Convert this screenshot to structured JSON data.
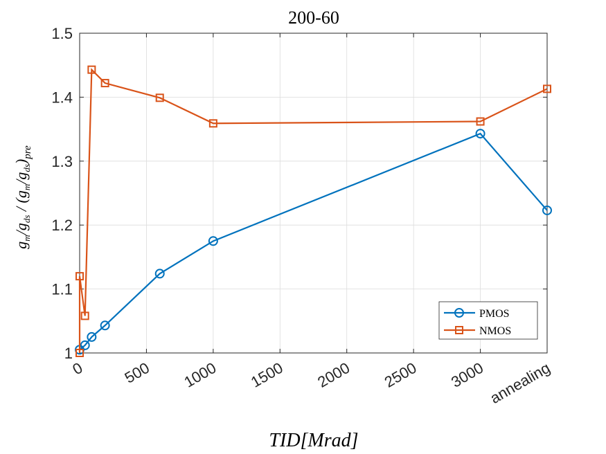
{
  "chart_data": {
    "type": "line",
    "title": "200-60",
    "xlabel": "TID[Mrad]",
    "ylabel": "g_m/g_ds / (g_m/g_ds)_pre",
    "xlim": [
      0,
      3500
    ],
    "ylim": [
      1.0,
      1.5
    ],
    "x_ticks": [
      0,
      500,
      1000,
      1500,
      2000,
      2500,
      3000,
      3500
    ],
    "x_tick_labels": [
      "0",
      "500",
      "1000",
      "1500",
      "2000",
      "2500",
      "3000",
      "annealing"
    ],
    "y_ticks": [
      1.0,
      1.1,
      1.2,
      1.3,
      1.4,
      1.5
    ],
    "y_tick_labels": [
      "1",
      "1.1",
      "1.2",
      "1.3",
      "1.4",
      "1.5"
    ],
    "grid": true,
    "legend_position": "bottom-right",
    "series": [
      {
        "name": "PMOS",
        "color": "#0072BD",
        "marker": "circle",
        "x": [
          0,
          40,
          90,
          190,
          600,
          1000,
          3000,
          3500
        ],
        "y": [
          1.005,
          1.012,
          1.025,
          1.043,
          1.124,
          1.175,
          1.343,
          1.223
        ]
      },
      {
        "name": "NMOS",
        "color": "#D95319",
        "marker": "square",
        "x": [
          0,
          0,
          40,
          90,
          190,
          600,
          1000,
          3000,
          3500
        ],
        "y": [
          1.0,
          1.12,
          1.058,
          1.443,
          1.422,
          1.399,
          1.359,
          1.362,
          1.413
        ]
      }
    ]
  }
}
